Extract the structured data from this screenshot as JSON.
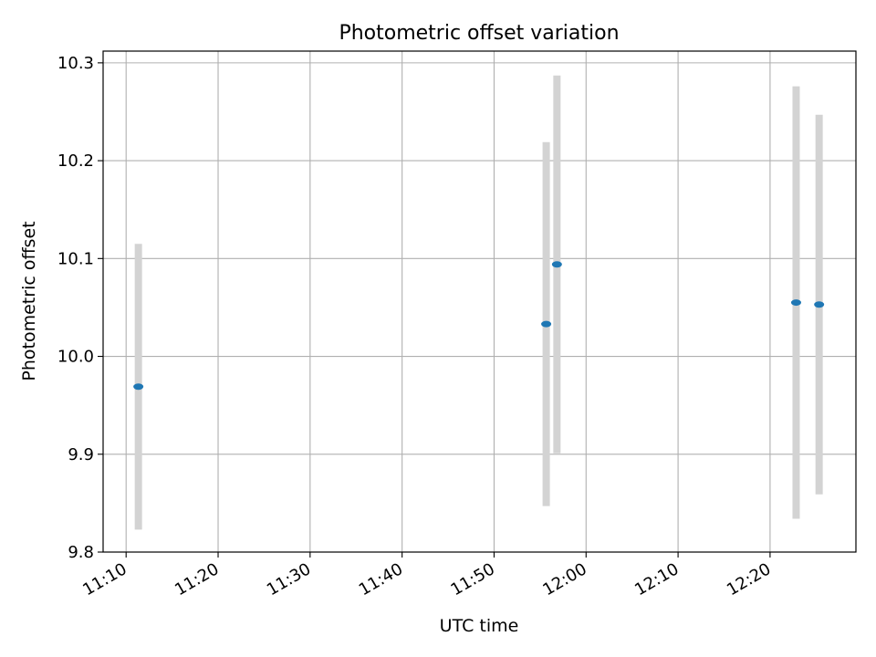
{
  "chart_data": {
    "type": "scatter",
    "title": "Photometric offset variation",
    "xlabel": "UTC time",
    "ylabel": "Photometric offset",
    "x_ticks": [
      "11:10",
      "11:20",
      "11:30",
      "11:40",
      "11:50",
      "12:00",
      "12:10",
      "12:20"
    ],
    "y_ticks": [
      "9.8",
      "9.9",
      "10.0",
      "10.1",
      "10.2",
      "10.3"
    ],
    "xlim": [
      "11:07:30",
      "12:29:20"
    ],
    "ylim": [
      9.8,
      10.312
    ],
    "grid": true,
    "points": [
      {
        "x": "11:11:20",
        "y": 9.969,
        "ymin": 9.823,
        "ymax": 10.115
      },
      {
        "x": "11:55:40",
        "y": 10.033,
        "ymin": 9.847,
        "ymax": 10.219
      },
      {
        "x": "11:56:50",
        "y": 10.094,
        "ymin": 9.901,
        "ymax": 10.287
      },
      {
        "x": "12:22:50",
        "y": 10.055,
        "ymin": 9.834,
        "ymax": 10.276
      },
      {
        "x": "12:25:20",
        "y": 10.053,
        "ymin": 9.859,
        "ymax": 10.247
      }
    ],
    "marker_color": "#1f77b4",
    "errorbar_color": "#d3d3d3",
    "grid_color": "#b0b0b0"
  }
}
